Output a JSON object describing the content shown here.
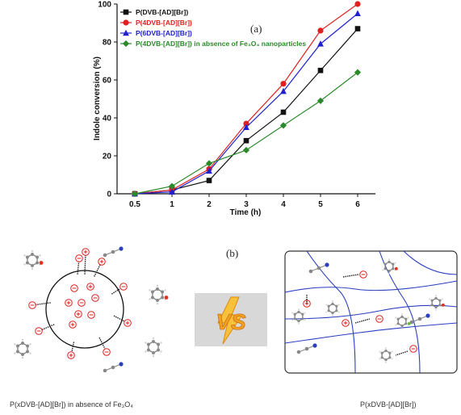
{
  "chart_data": {
    "type": "line",
    "panel_label": "(a)",
    "xlabel": "Time (h)",
    "ylabel": "Indole conversion (%)",
    "categories": [
      "0.5",
      "1",
      "2",
      "3",
      "4",
      "5",
      "6"
    ],
    "ylim": [
      0,
      100
    ],
    "yticks": [
      "0",
      "20",
      "40",
      "60",
      "80",
      "100"
    ],
    "grid": false,
    "legend_position": "top-left",
    "series": [
      {
        "name": "P(DVB-[AD][Br])",
        "color": "#111111",
        "marker": "square",
        "values": [
          0,
          2,
          7,
          28,
          43,
          65,
          87
        ]
      },
      {
        "name": "P(4DVB-[AD][Br])",
        "color": "#e02020",
        "marker": "circle",
        "values": [
          0,
          2,
          13,
          37,
          58,
          86,
          100
        ]
      },
      {
        "name": "P(6DVB-[AD][Br])",
        "color": "#2020d0",
        "marker": "triangle",
        "values": [
          0,
          1,
          12,
          35,
          54,
          79,
          95
        ]
      },
      {
        "name": "P(4DVB-[AD][Br]) in absence of Fe₃O₄ nanoparticles",
        "color": "#2a8a2a",
        "marker": "diamond",
        "values": [
          0,
          4,
          16,
          23,
          36,
          49,
          64
        ]
      }
    ]
  },
  "scheme": {
    "panel_label": "(b)",
    "vs_text": "VS",
    "caption_left": "P(xDVB-[AD][Br]) in absence of Fe₃O₄",
    "caption_right": "P(xDVB-[AD][Br])"
  },
  "colors": {
    "ring": "#111111",
    "ion": "#e02020",
    "network": "#2a3fc0",
    "vs_background": "#d8d8d8",
    "vs_text": "#f2a020"
  }
}
